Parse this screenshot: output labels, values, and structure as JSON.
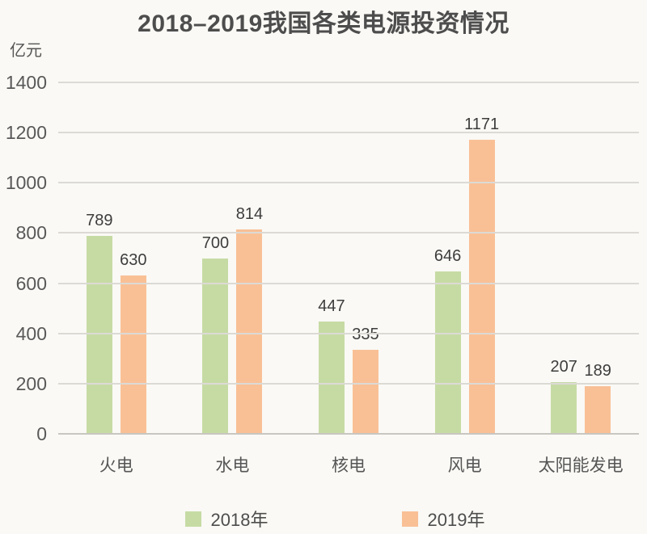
{
  "chart": {
    "title": "2018–2019我国各类电源投资情况",
    "unit": "亿元"
  },
  "chart_data": {
    "type": "bar",
    "title": "2018–2019我国各类电源投资情况",
    "ylabel": "亿元",
    "xlabel": "",
    "categories": [
      "火电",
      "水电",
      "核电",
      "风电",
      "太阳能发电"
    ],
    "series": [
      {
        "name": "2018年",
        "color": "#c6dba4",
        "values": [
          789,
          700,
          447,
          646,
          207
        ]
      },
      {
        "name": "2019年",
        "color": "#f9c096",
        "values": [
          630,
          814,
          335,
          1171,
          189
        ]
      }
    ],
    "ylim": [
      0,
      1400
    ],
    "ytick_step": 200,
    "yticks": [
      0,
      200,
      400,
      600,
      800,
      1000,
      1200,
      1400
    ],
    "grid": "horizontal",
    "legend_position": "bottom"
  },
  "style": {
    "background": "#faf9f5",
    "gridline_color": "#dcdad5",
    "axis_line_color": "#c8c6c1",
    "tick_text_color": "#595959",
    "value_text_color": "#3d3d3d",
    "title_color": "#4d4d4d"
  }
}
